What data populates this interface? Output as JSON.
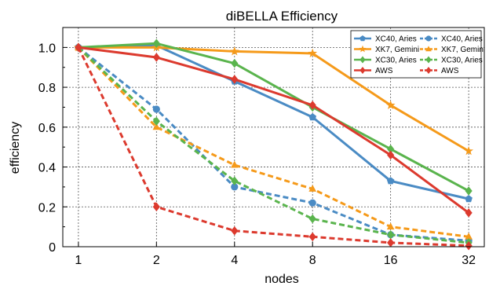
{
  "chart_data": {
    "type": "line",
    "title": "diBELLA Efficiency",
    "xlabel": "nodes",
    "ylabel": "efficiency",
    "x_scale": "log2",
    "x": [
      1,
      2,
      4,
      8,
      16,
      32
    ],
    "x_ticks": [
      "1",
      "2",
      "4",
      "8",
      "16",
      "32"
    ],
    "ylim": [
      0,
      1.1
    ],
    "y_ticks": [
      "0",
      "0.2",
      "0.4",
      "0.6",
      "0.8",
      "1.0"
    ],
    "grid": true,
    "legend_position": "top-right",
    "series": [
      {
        "name": "XC40, Aries",
        "color": "#4a8bc4",
        "style": "solid",
        "marker": "pentagon",
        "values": [
          1.0,
          1.01,
          0.83,
          0.65,
          0.33,
          0.24
        ]
      },
      {
        "name": "XC40, Aries",
        "color": "#4a8bc4",
        "style": "dashed",
        "marker": "circle",
        "values": [
          1.0,
          0.69,
          0.3,
          0.22,
          0.06,
          0.03
        ]
      },
      {
        "name": "XK7, Gemini",
        "color": "#f59a1a",
        "style": "solid",
        "marker": "star",
        "values": [
          1.0,
          1.0,
          0.98,
          0.97,
          0.71,
          0.48
        ]
      },
      {
        "name": "XK7, Gemini",
        "color": "#f59a1a",
        "style": "dashed",
        "marker": "triangle",
        "values": [
          1.0,
          0.6,
          0.41,
          0.29,
          0.1,
          0.05
        ]
      },
      {
        "name": "XC30, Aries",
        "color": "#5ab44d",
        "style": "solid",
        "marker": "diamond",
        "values": [
          1.0,
          1.02,
          0.92,
          0.7,
          0.49,
          0.28
        ]
      },
      {
        "name": "XC30, Aries",
        "color": "#5ab44d",
        "style": "dashed",
        "marker": "diamond",
        "values": [
          1.0,
          0.63,
          0.33,
          0.14,
          0.06,
          0.02
        ]
      },
      {
        "name": "AWS",
        "color": "#dc3a2e",
        "style": "solid",
        "marker": "diamond",
        "values": [
          1.0,
          0.95,
          0.84,
          0.71,
          0.46,
          0.17
        ]
      },
      {
        "name": "AWS",
        "color": "#dc3a2e",
        "style": "dashed",
        "marker": "diamond",
        "values": [
          1.0,
          0.2,
          0.08,
          0.05,
          0.02,
          0.005
        ]
      }
    ]
  }
}
